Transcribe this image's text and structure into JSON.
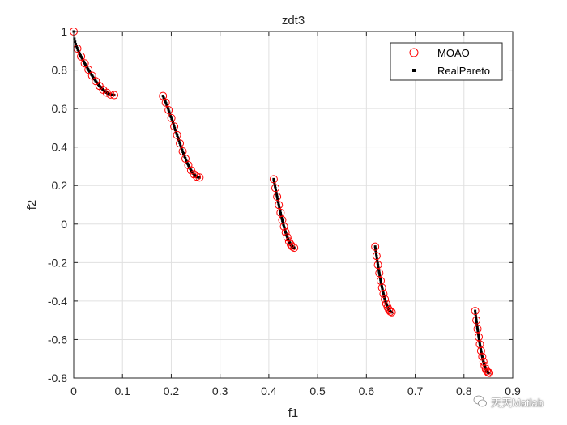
{
  "chart_data": {
    "type": "scatter",
    "title": "zdt3",
    "xlabel": "f1",
    "ylabel": "f2",
    "xlim": [
      0,
      0.9
    ],
    "ylim": [
      -0.8,
      1
    ],
    "xticks": [
      0,
      0.1,
      0.2,
      0.3,
      0.4,
      0.5,
      0.6,
      0.7,
      0.8,
      0.9
    ],
    "xtick_labels": [
      "0",
      "0.1",
      "0.2",
      "0.3",
      "0.4",
      "0.5",
      "0.6",
      "0.7",
      "0.8",
      "0.9"
    ],
    "yticks": [
      -0.8,
      -0.6,
      -0.4,
      -0.2,
      0,
      0.2,
      0.4,
      0.6,
      0.8,
      1
    ],
    "ytick_labels": [
      "-0.8",
      "-0.6",
      "-0.4",
      "-0.2",
      "0",
      "0.2",
      "0.4",
      "0.6",
      "0.8",
      "1"
    ],
    "grid": true,
    "legend_position": "top-right",
    "series": [
      {
        "name": "MOAO",
        "marker": "circle-open",
        "color": "#ff0000",
        "segments": [
          {
            "f1_range": [
              0.0,
              0.083
            ],
            "count": 12
          },
          {
            "f1_range": [
              0.183,
              0.258
            ],
            "count": 14
          },
          {
            "f1_range": [
              0.41,
              0.452
            ],
            "count": 13
          },
          {
            "f1_range": [
              0.618,
              0.652
            ],
            "count": 13
          },
          {
            "f1_range": [
              0.823,
              0.852
            ],
            "count": 13
          }
        ]
      },
      {
        "name": "RealPareto",
        "marker": "point",
        "color": "#000000",
        "segments": [
          {
            "f1_range": [
              0.0,
              0.083
            ],
            "count": 60
          },
          {
            "f1_range": [
              0.183,
              0.258
            ],
            "count": 60
          },
          {
            "f1_range": [
              0.41,
              0.452
            ],
            "count": 60
          },
          {
            "f1_range": [
              0.618,
              0.652
            ],
            "count": 60
          },
          {
            "f1_range": [
              0.823,
              0.852
            ],
            "count": 60
          }
        ]
      }
    ]
  },
  "watermark": {
    "text": "天天Matlab",
    "icon": "wechat-icon"
  }
}
